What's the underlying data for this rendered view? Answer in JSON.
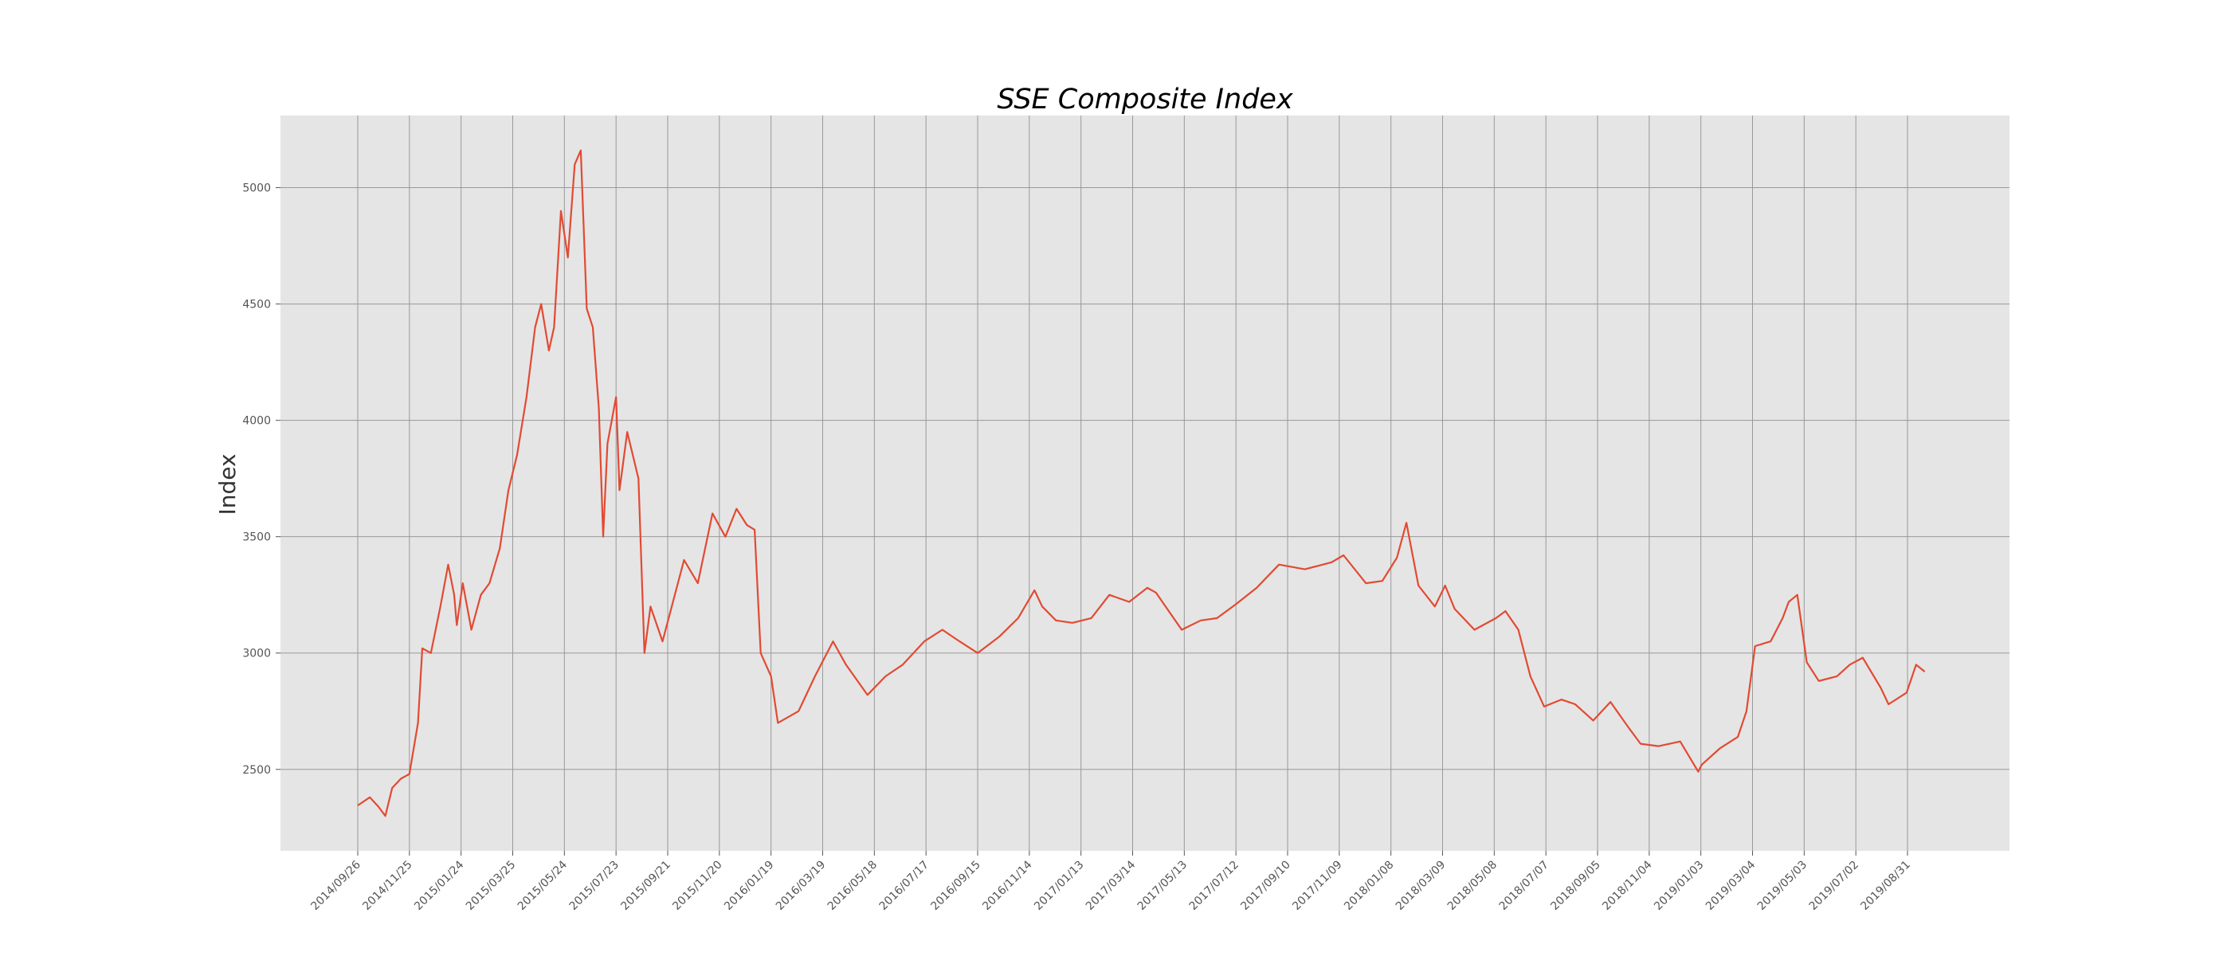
{
  "chart_data": {
    "type": "line",
    "title": "SSE Composite Index",
    "xlabel": "",
    "ylabel": "Index",
    "ylim": [
      2150,
      5310
    ],
    "grid": true,
    "legend": "none",
    "colors": {
      "line": "#e24a33",
      "plot_bg": "#e5e5e5",
      "grid": "#999999"
    },
    "xticks": [
      "2014/09/26",
      "2014/11/25",
      "2015/01/24",
      "2015/03/25",
      "2015/05/24",
      "2015/07/23",
      "2015/09/21",
      "2015/11/20",
      "2016/01/19",
      "2016/03/19",
      "2016/05/18",
      "2016/07/17",
      "2016/09/15",
      "2016/11/14",
      "2017/01/13",
      "2017/03/14",
      "2017/05/13",
      "2017/07/12",
      "2017/09/10",
      "2017/11/09",
      "2018/01/08",
      "2018/03/09",
      "2018/05/08",
      "2018/07/07",
      "2018/09/05",
      "2018/11/04",
      "2019/01/03",
      "2019/03/04",
      "2019/05/03",
      "2019/07/02",
      "2019/08/31"
    ],
    "yticks": [
      2500,
      3000,
      3500,
      4000,
      4500,
      5000
    ],
    "series": [
      {
        "x": [
          "2014/09/26",
          "2014/10/10",
          "2014/10/20",
          "2014/10/28",
          "2014/11/05",
          "2014/11/15",
          "2014/11/25",
          "2014/12/05",
          "2014/12/10",
          "2014/12/20",
          "2014/12/31",
          "2015/01/09",
          "2015/01/16",
          "2015/01/19",
          "2015/01/26",
          "2015/02/05",
          "2015/02/16",
          "2015/02/26",
          "2015/03/10",
          "2015/03/20",
          "2015/03/30",
          "2015/04/10",
          "2015/04/20",
          "2015/04/27",
          "2015/05/06",
          "2015/05/12",
          "2015/05/20",
          "2015/05/28",
          "2015/06/05",
          "2015/06/12",
          "2015/06/19",
          "2015/06/26",
          "2015/07/03",
          "2015/07/08",
          "2015/07/13",
          "2015/07/23",
          "2015/07/27",
          "2015/08/05",
          "2015/08/18",
          "2015/08/25",
          "2015/09/01",
          "2015/09/15",
          "2015/10/10",
          "2015/10/26",
          "2015/11/12",
          "2015/11/27",
          "2015/12/10",
          "2015/12/22",
          "2015/12/31",
          "2016/01/07",
          "2016/01/19",
          "2016/01/27",
          "2016/02/20",
          "2016/03/10",
          "2016/03/31",
          "2016/04/15",
          "2016/05/10",
          "2016/05/31",
          "2016/06/20",
          "2016/07/15",
          "2016/08/05",
          "2016/08/25",
          "2016/09/15",
          "2016/10/10",
          "2016/11/01",
          "2016/11/20",
          "2016/11/29",
          "2016/12/15",
          "2017/01/03",
          "2017/01/25",
          "2017/02/15",
          "2017/03/10",
          "2017/03/31",
          "2017/04/10",
          "2017/05/10",
          "2017/06/01",
          "2017/06/20",
          "2017/07/12",
          "2017/08/05",
          "2017/08/31",
          "2017/09/30",
          "2017/10/31",
          "2017/11/14",
          "2017/12/10",
          "2017/12/29",
          "2018/01/15",
          "2018/01/26",
          "2018/02/09",
          "2018/02/28",
          "2018/03/12",
          "2018/03/23",
          "2018/04/15",
          "2018/05/10",
          "2018/05/21",
          "2018/06/05",
          "2018/06/19",
          "2018/07/05",
          "2018/07/25",
          "2018/08/10",
          "2018/08/31",
          "2018/09/20",
          "2018/10/11",
          "2018/10/25",
          "2018/11/15",
          "2018/12/10",
          "2018/12/31",
          "2019/01/04",
          "2019/01/25",
          "2019/02/15",
          "2019/02/25",
          "2019/03/07",
          "2019/03/25",
          "2019/04/08",
          "2019/04/15",
          "2019/04/25",
          "2019/05/06",
          "2019/05/20",
          "2019/06/10",
          "2019/06/25",
          "2019/07/10",
          "2019/07/31",
          "2019/08/09",
          "2019/08/30",
          "2019/09/10",
          "2019/09/20"
        ],
        "values": [
          2345,
          2380,
          2340,
          2300,
          2420,
          2460,
          2480,
          2700,
          3020,
          3000,
          3200,
          3380,
          3250,
          3120,
          3300,
          3100,
          3250,
          3300,
          3450,
          3700,
          3850,
          4100,
          4400,
          4500,
          4300,
          4400,
          4900,
          4700,
          5100,
          5160,
          4480,
          4400,
          4050,
          3500,
          3900,
          4100,
          3700,
          3950,
          3750,
          3000,
          3200,
          3050,
          3400,
          3300,
          3600,
          3500,
          3620,
          3550,
          3530,
          3000,
          2900,
          2700,
          2750,
          2900,
          3050,
          2950,
          2820,
          2900,
          2950,
          3050,
          3100,
          3050,
          3000,
          3070,
          3150,
          3270,
          3200,
          3140,
          3130,
          3150,
          3250,
          3220,
          3280,
          3260,
          3100,
          3140,
          3150,
          3210,
          3280,
          3380,
          3360,
          3390,
          3420,
          3300,
          3310,
          3410,
          3560,
          3290,
          3200,
          3290,
          3190,
          3100,
          3150,
          3180,
          3100,
          2900,
          2770,
          2800,
          2780,
          2710,
          2790,
          2680,
          2610,
          2600,
          2620,
          2490,
          2520,
          2590,
          2640,
          2750,
          3030,
          3050,
          3150,
          3220,
          3250,
          2960,
          2880,
          2900,
          2950,
          2980,
          2850,
          2780,
          2830,
          2950,
          2920
        ]
      }
    ]
  }
}
